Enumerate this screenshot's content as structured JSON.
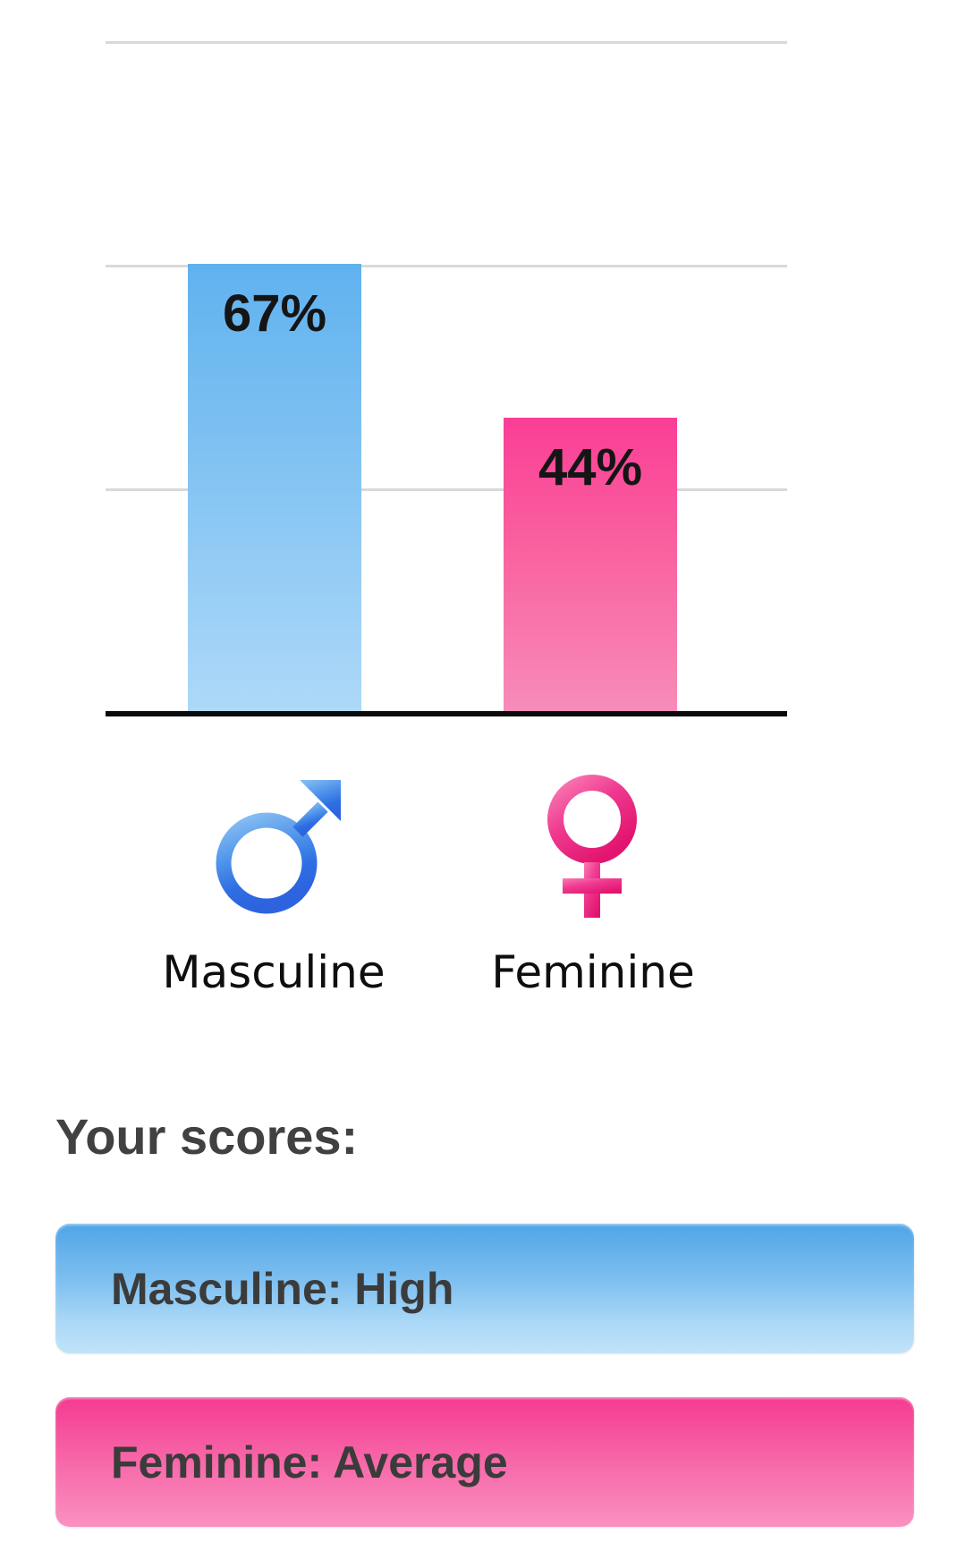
{
  "chart_data": {
    "type": "bar",
    "title": "",
    "categories": [
      "Masculine",
      "Feminine"
    ],
    "values": [
      67,
      44
    ],
    "value_labels": [
      "67%",
      "44%"
    ],
    "ylim": [
      0,
      100
    ],
    "gridline_values": [
      33.33,
      66.67,
      100
    ],
    "grid": true,
    "legend_position": "none",
    "xlabel": "",
    "ylabel": ""
  },
  "icons": {
    "masculine": "male-symbol-icon",
    "feminine": "female-symbol-icon"
  },
  "scores": {
    "heading": "Your scores:",
    "items": [
      {
        "id": "masculine",
        "label": "Masculine: High"
      },
      {
        "id": "feminine",
        "label": "Feminine: Average"
      }
    ]
  },
  "colors": {
    "masculine_bar_top": "#60b2ef",
    "masculine_bar_bottom": "#aed9f8",
    "feminine_bar_top": "#fa3e96",
    "feminine_bar_bottom": "#f78db9",
    "masculine_pill_top": "#4fa5e7",
    "masculine_pill_bottom": "#c2e3fa",
    "feminine_pill_top": "#f53a91",
    "feminine_pill_bottom": "#fa90c1",
    "male_icon_light": "#8cc2f3",
    "male_icon_dark": "#2e63df",
    "female_icon_light": "#f97cb4",
    "female_icon_dark": "#e2146f",
    "axis_line": "#0a0a0a",
    "gridline": "#d9d9d9",
    "value_label_text": "#151515",
    "axis_label_text": "#0e0e0e",
    "heading_text": "#414141",
    "pill_text": "#3b3b3b",
    "background": "#ffffff"
  }
}
